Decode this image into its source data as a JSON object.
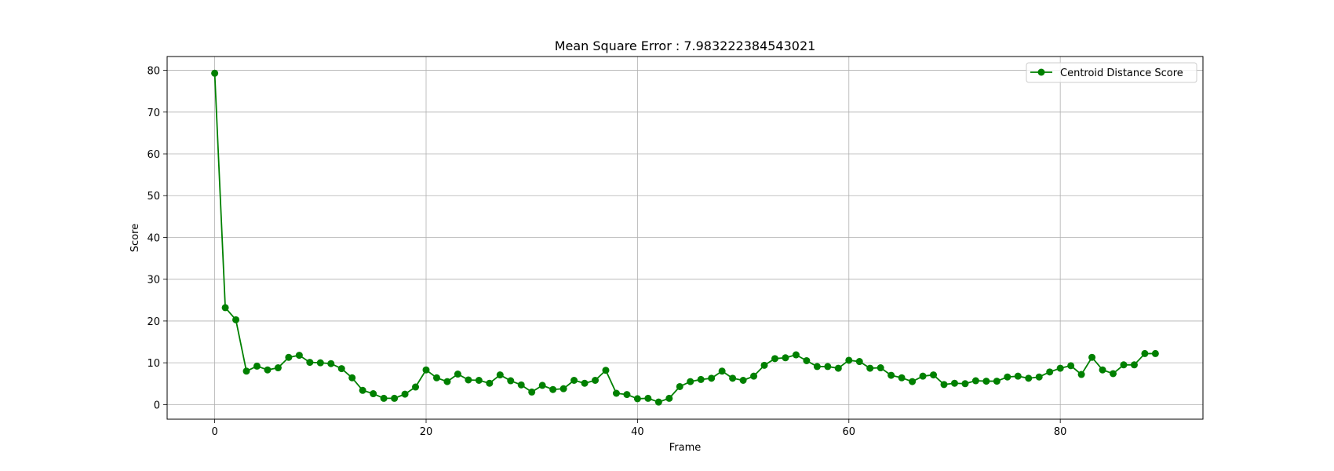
{
  "chart_data": {
    "type": "line",
    "title": "Mean Square Error : 7.983222384543021",
    "xlabel": "Frame",
    "ylabel": "Score",
    "xlim": [
      -4.5,
      93.5
    ],
    "ylim": [
      -3.5,
      83.3
    ],
    "xticks": [
      0,
      20,
      40,
      60,
      80
    ],
    "yticks": [
      0,
      10,
      20,
      30,
      40,
      50,
      60,
      70,
      80
    ],
    "grid": true,
    "legend_position": "top-right",
    "series": [
      {
        "name": "Centroid Distance Score",
        "color": "#008000",
        "marker": "circle",
        "x": [
          0,
          1,
          2,
          3,
          4,
          5,
          6,
          7,
          8,
          9,
          10,
          11,
          12,
          13,
          14,
          15,
          16,
          17,
          18,
          19,
          20,
          21,
          22,
          23,
          24,
          25,
          26,
          27,
          28,
          29,
          30,
          31,
          32,
          33,
          34,
          35,
          36,
          37,
          38,
          39,
          40,
          41,
          42,
          43,
          44,
          45,
          46,
          47,
          48,
          49,
          50,
          51,
          52,
          53,
          54,
          55,
          56,
          57,
          58,
          59,
          60,
          61,
          62,
          63,
          64,
          65,
          66,
          67,
          68,
          69,
          70,
          71,
          72,
          73,
          74,
          75,
          76,
          77,
          78,
          79,
          80,
          81,
          82,
          83,
          84,
          85,
          86,
          87,
          88,
          89
        ],
        "y": [
          79.3,
          23.2,
          20.3,
          8.0,
          9.2,
          8.3,
          8.8,
          11.3,
          11.8,
          10.1,
          10.0,
          9.8,
          8.6,
          6.4,
          3.4,
          2.6,
          1.5,
          1.5,
          2.5,
          4.2,
          8.3,
          6.4,
          5.5,
          7.3,
          5.9,
          5.8,
          5.1,
          7.1,
          5.7,
          4.7,
          3.0,
          4.6,
          3.6,
          3.8,
          5.8,
          5.1,
          5.8,
          8.2,
          2.7,
          2.4,
          1.4,
          1.5,
          0.6,
          1.5,
          4.3,
          5.5,
          6.0,
          6.3,
          8.0,
          6.3,
          5.8,
          6.8,
          9.4,
          11.0,
          11.2,
          11.9,
          10.5,
          9.1,
          9.1,
          8.7,
          10.6,
          10.3,
          8.7,
          8.8,
          7.0,
          6.4,
          5.5,
          6.8,
          7.1,
          4.8,
          5.1,
          5.0,
          5.7,
          5.6,
          5.6,
          6.6,
          6.8,
          6.3,
          6.6,
          7.8,
          8.7,
          9.3,
          7.2,
          11.3,
          8.3,
          7.4,
          9.5,
          9.5,
          12.2,
          12.2
        ]
      }
    ]
  }
}
